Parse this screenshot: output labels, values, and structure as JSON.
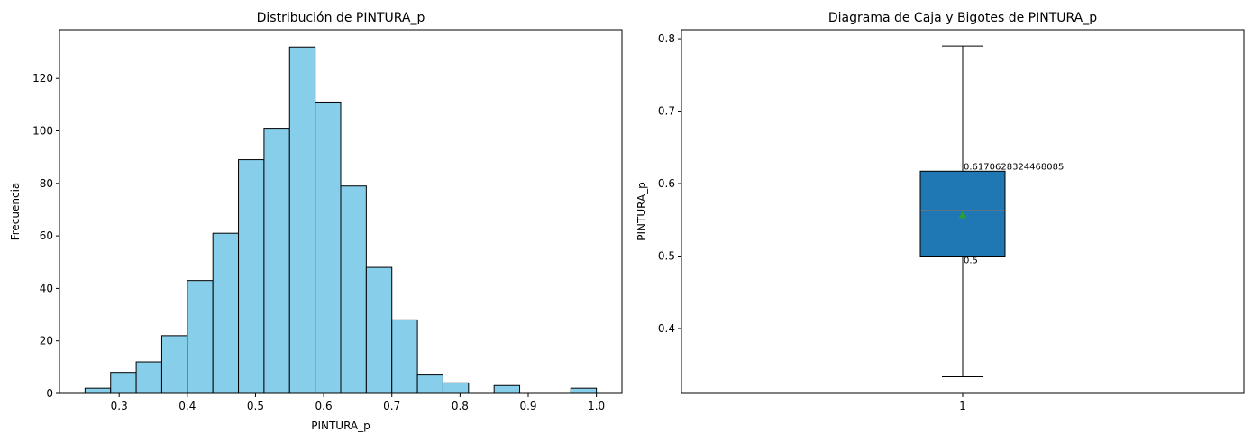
{
  "chart_data": [
    {
      "type": "bar",
      "title": "Distribución de PINTURA_p",
      "xlabel": "PINTURA_p",
      "ylabel": "Frecuencia",
      "xlim": [
        0.2125,
        1.0375
      ],
      "ylim": [
        0,
        138.6
      ],
      "xticks": [
        0.3,
        0.4,
        0.5,
        0.6,
        0.7,
        0.8,
        0.9,
        1.0
      ],
      "xtick_labels": [
        "0.3",
        "0.4",
        "0.5",
        "0.6",
        "0.7",
        "0.8",
        "0.9",
        "1.0"
      ],
      "yticks": [
        0,
        20,
        40,
        60,
        80,
        100,
        120
      ],
      "ytick_labels": [
        "0",
        "20",
        "40",
        "60",
        "80",
        "100",
        "120"
      ],
      "bin_edges": [
        0.25,
        0.2875,
        0.325,
        0.3625,
        0.4,
        0.4375,
        0.475,
        0.5125,
        0.55,
        0.5875,
        0.625,
        0.6625,
        0.7,
        0.7375,
        0.775,
        0.8125,
        0.85,
        0.8875,
        0.925,
        0.9625,
        1.0
      ],
      "values": [
        2,
        8,
        12,
        22,
        43,
        61,
        89,
        101,
        132,
        111,
        79,
        48,
        28,
        7,
        4,
        0,
        3,
        0,
        0,
        2
      ],
      "bar_color": "#87ceeb",
      "edge_color": "#000000",
      "grid": false
    },
    {
      "type": "box",
      "title": "Diagrama de Caja y Bigotes de PINTURA_p",
      "xlabel": "",
      "ylabel": "PINTURA_p",
      "ylim": [
        0.3105,
        0.8125
      ],
      "yticks": [
        0.4,
        0.5,
        0.6,
        0.7,
        0.8
      ],
      "ytick_labels": [
        "0.4",
        "0.5",
        "0.6",
        "0.7",
        "0.8"
      ],
      "xtick_labels": [
        "1"
      ],
      "whisker_low": 0.3335,
      "q1": 0.5,
      "median": 0.5625,
      "mean": 0.556,
      "q3": 0.6170628324468085,
      "whisker_high": 0.79,
      "annotations": [
        "0.6170628324468085",
        "0.5"
      ],
      "box_color": "#1f77b4",
      "median_color": "#ff7f0e",
      "mean_color": "#2ca02c",
      "grid": false
    }
  ]
}
